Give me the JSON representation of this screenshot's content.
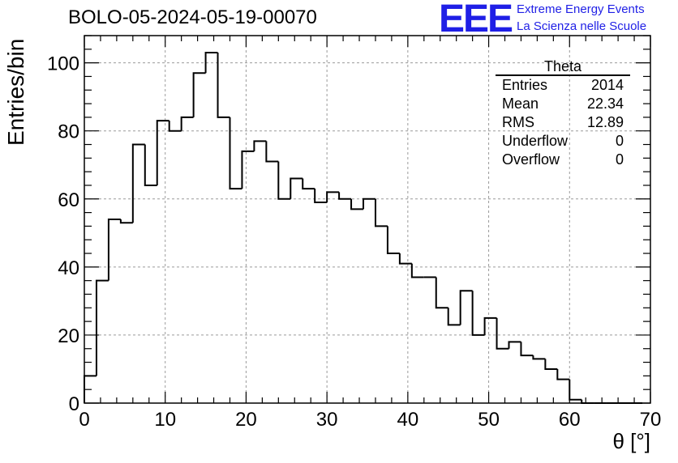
{
  "header": {
    "title": "BOLO-05-2024-05-19-00070",
    "logo_text": "EEE",
    "logo_line1": "Extreme Energy Events",
    "logo_line2": "La Scienza nelle Scuole",
    "logo_color": "#1f1fe6"
  },
  "stats": {
    "title": "Theta",
    "rows": [
      {
        "label": "Entries",
        "value": "2014"
      },
      {
        "label": "Mean",
        "value": "22.34"
      },
      {
        "label": "RMS",
        "value": "12.89"
      },
      {
        "label": "Underflow",
        "value": "0"
      },
      {
        "label": "Overflow",
        "value": "0"
      }
    ]
  },
  "chart_data": {
    "type": "bar",
    "style": "step-histogram",
    "xlabel": "θ [°]",
    "ylabel": "Entries/bin",
    "xlim": [
      0,
      70
    ],
    "ylim": [
      0,
      108
    ],
    "xticks": [
      0,
      10,
      20,
      30,
      40,
      50,
      60,
      70
    ],
    "yticks": [
      0,
      20,
      40,
      60,
      80,
      100
    ],
    "grid": true,
    "bin_width": 1.5,
    "bin_start": 0,
    "values": [
      8,
      36,
      54,
      53,
      76,
      64,
      83,
      80,
      84,
      97,
      103,
      84,
      63,
      74,
      77,
      71,
      60,
      66,
      63,
      59,
      62,
      60,
      57,
      60,
      52,
      44,
      41,
      37,
      37,
      28,
      23,
      33,
      20,
      25,
      16,
      18,
      14,
      13,
      10,
      7,
      1,
      0,
      0,
      0,
      0,
      0,
      0
    ]
  }
}
